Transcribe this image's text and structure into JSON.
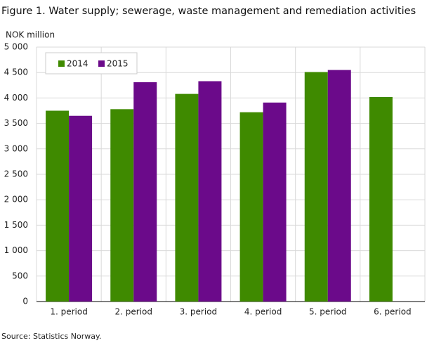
{
  "chart_data": {
    "type": "bar",
    "title": "Figure 1. Water supply; sewerage, waste management and remediation activities",
    "y_label": "NOK million",
    "source": "Source: Statistics Norway.",
    "categories": [
      "1. period",
      "2. period",
      "3. period",
      "4. period",
      "5. period",
      "6. period"
    ],
    "series": [
      {
        "name": "2014",
        "color": "#3f8a00",
        "values": [
          3750,
          3780,
          4080,
          3720,
          4510,
          4020
        ]
      },
      {
        "name": "2015",
        "color": "#6b0a8a",
        "values": [
          3650,
          4310,
          4330,
          3910,
          4550,
          null
        ]
      }
    ],
    "ylim": [
      0,
      5000
    ],
    "yticks": [
      0,
      500,
      {
        "value": 1000,
        "label": "1 000"
      },
      {
        "value": 1500,
        "label": "1 500"
      },
      {
        "value": 2000,
        "label": "2 000"
      },
      {
        "value": 2500,
        "label": "2 500"
      },
      {
        "value": 3000,
        "label": "3 000"
      },
      {
        "value": 3500,
        "label": "3 500"
      },
      {
        "value": 4000,
        "label": "4 000"
      },
      {
        "value": 4500,
        "label": "4 500"
      },
      {
        "value": 5000,
        "label": "5 000"
      }
    ],
    "grid": true,
    "legend": "top-left"
  }
}
